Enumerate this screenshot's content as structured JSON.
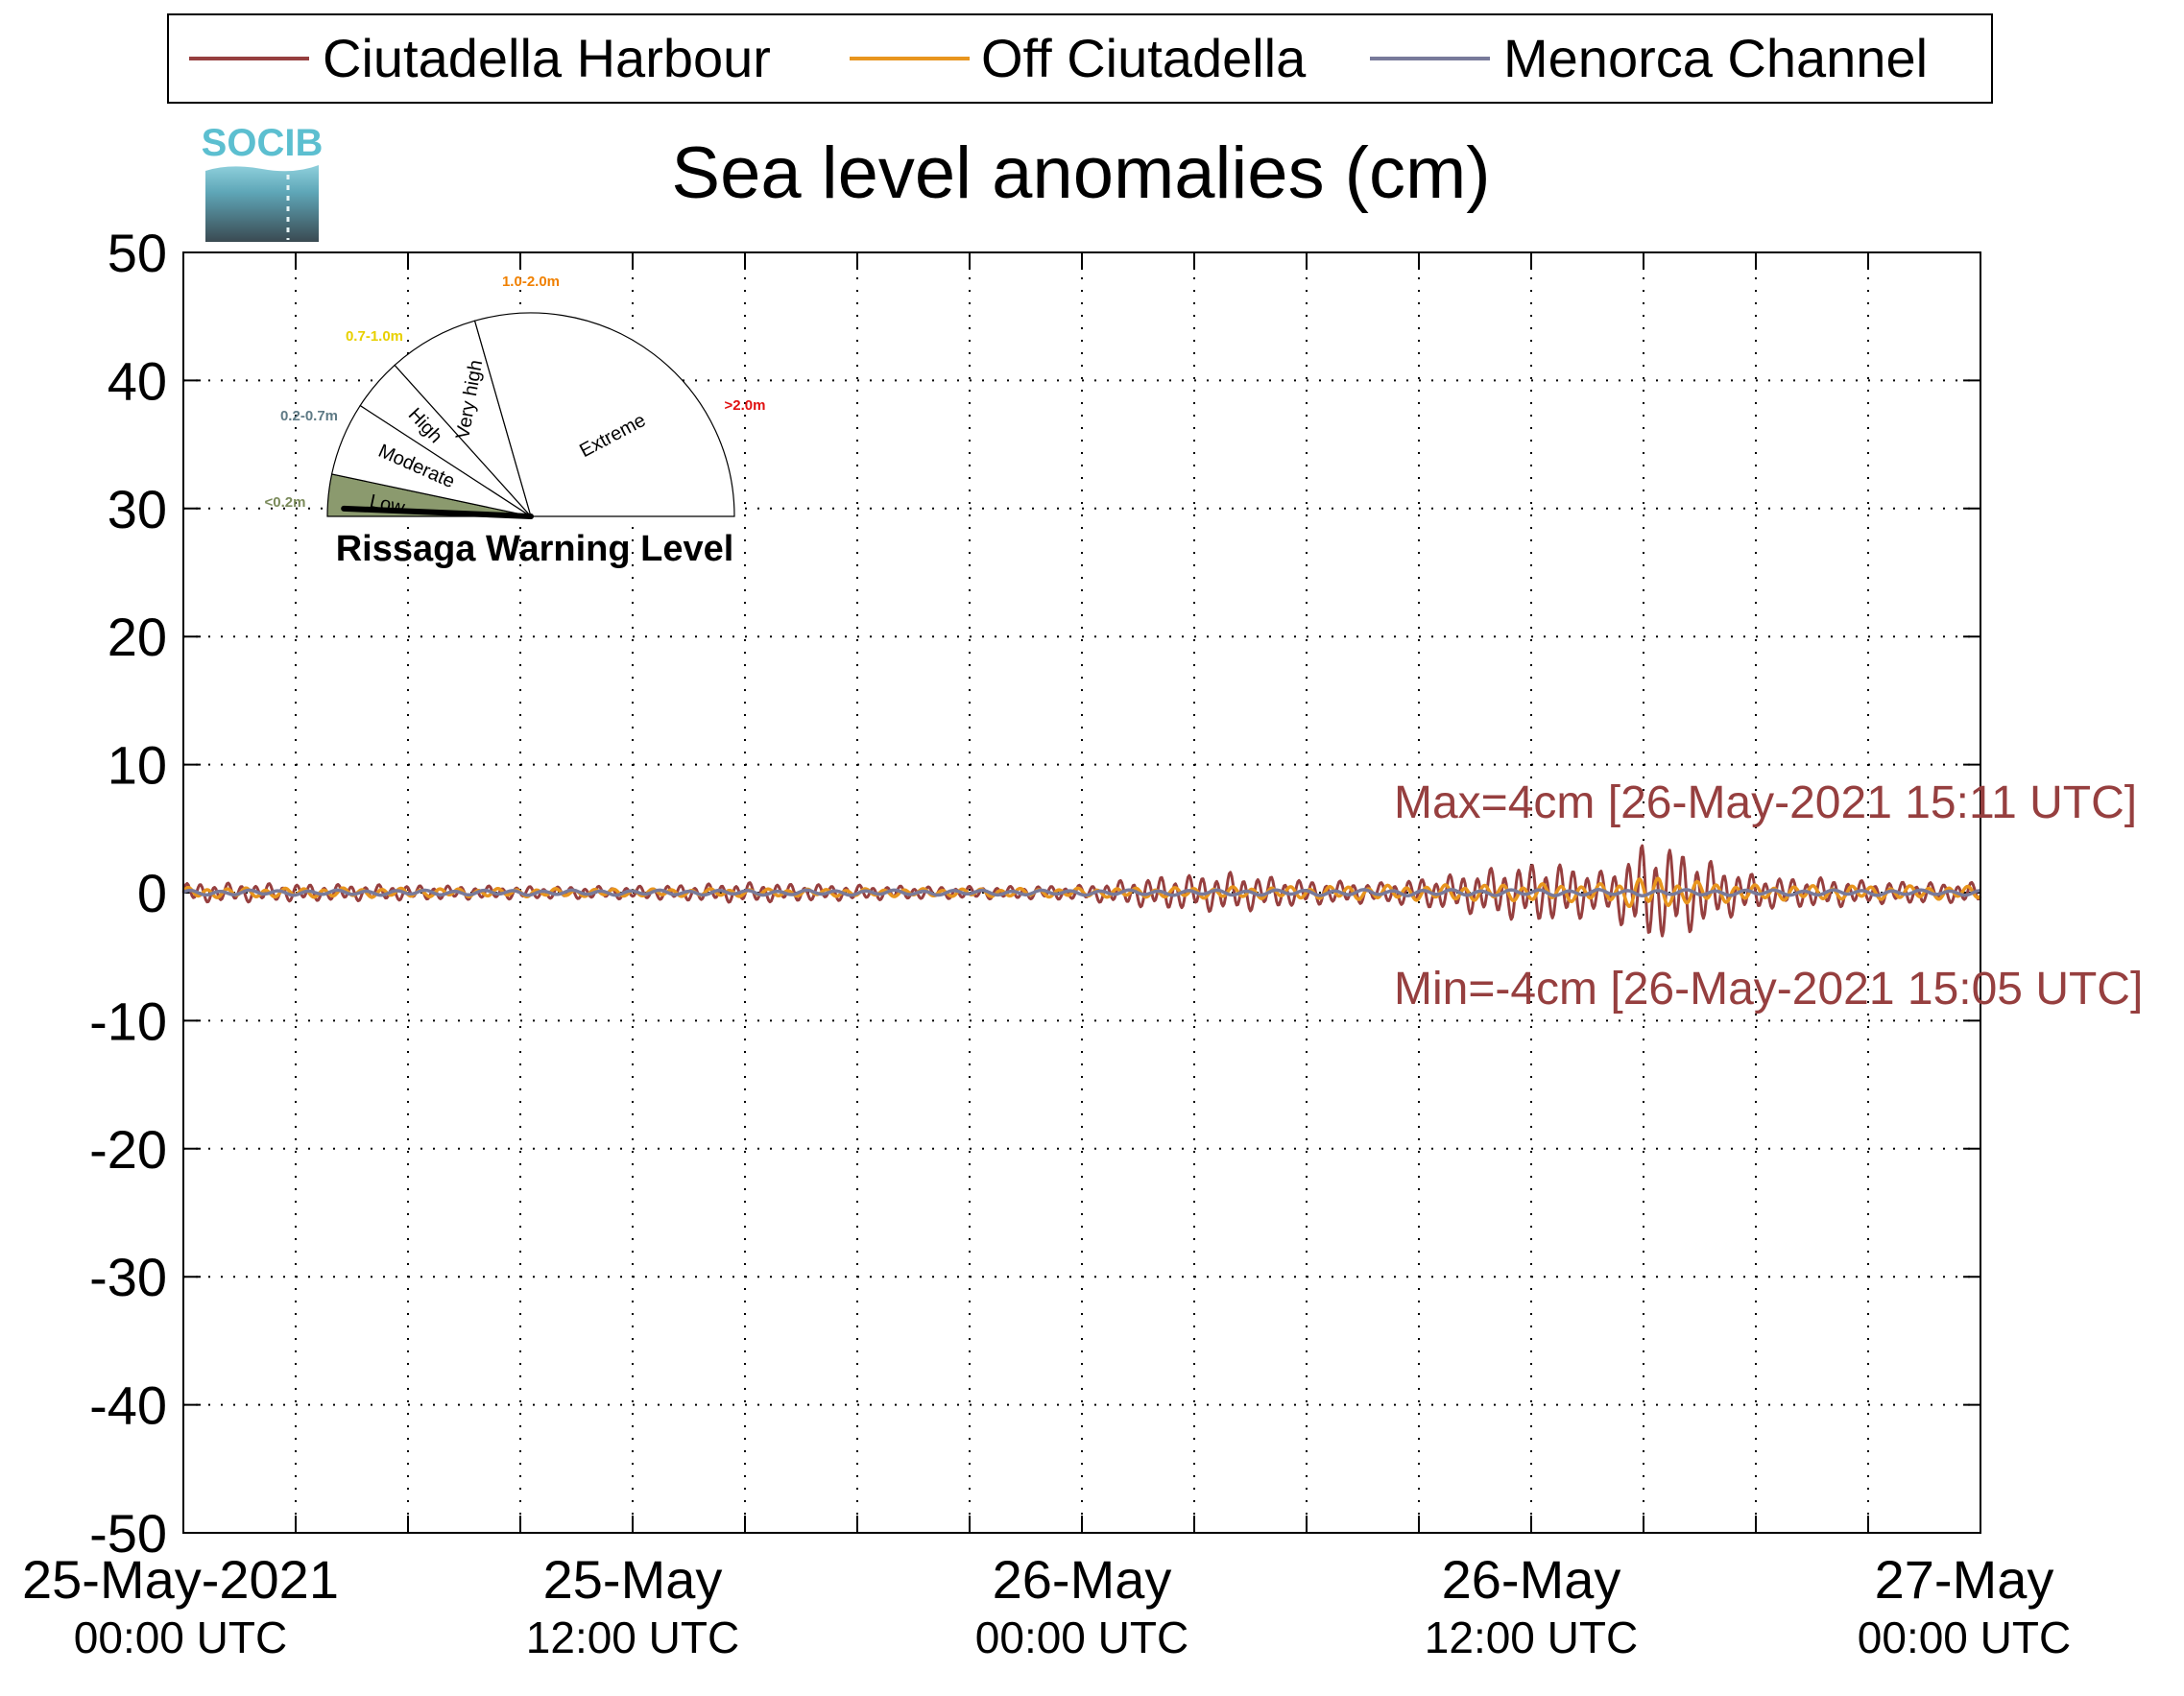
{
  "logo": {
    "text": "SOCIB"
  },
  "legend": {
    "placement": "top",
    "entries": [
      {
        "label": "Ciutadella Harbour",
        "color": "#963f3f"
      },
      {
        "label": "Off Ciutadella",
        "color": "#e8951e"
      },
      {
        "label": "Menorca Channel",
        "color": "#787a9a"
      }
    ]
  },
  "gauge": {
    "title": "Rissaga Warning Level",
    "needle_value_m": 0.04,
    "sectors": [
      {
        "name": "Low",
        "range": "<0.2m",
        "range_color": "#7a8a5a",
        "fill": "#8b9a6e",
        "active": true
      },
      {
        "name": "Moderate",
        "range": "0.2-0.7m",
        "range_color": "#5e7a85",
        "fill": "#ffffff",
        "active": false
      },
      {
        "name": "High",
        "range": "0.7-1.0m",
        "range_color": "#e8d000",
        "fill": "#ffffff",
        "active": false
      },
      {
        "name": "Very high",
        "range": "1.0-2.0m",
        "range_color": "#f08000",
        "fill": "#ffffff",
        "active": false
      },
      {
        "name": "Extreme",
        "range": ">2.0m",
        "range_color": "#e01010",
        "fill": "#ffffff",
        "active": false
      }
    ]
  },
  "annotations": {
    "max": {
      "text": "Max=4cm [26-May-2021 15:11 UTC]",
      "x_hours": 39.18,
      "y": 4,
      "color": "#963f3f"
    },
    "min": {
      "text": "Min=-4cm [26-May-2021 15:05 UTC]",
      "x_hours": 39.08,
      "y": -4,
      "color": "#963f3f"
    }
  },
  "chart_data": {
    "type": "line",
    "title": "Sea level anomalies (cm)",
    "xlabel": "",
    "ylabel": "",
    "ylim": [
      -50,
      50
    ],
    "yticks": [
      50,
      40,
      30,
      20,
      10,
      0,
      -10,
      -20,
      -30,
      -40,
      -50
    ],
    "x_range": [
      "25-May-2021 00:00 UTC",
      "27-May-2021 00:00 UTC"
    ],
    "x_tick_labels": [
      {
        "line1": "25-May-2021",
        "line2": "00:00 UTC"
      },
      {
        "line1": "25-May",
        "line2": "12:00 UTC"
      },
      {
        "line1": "26-May",
        "line2": "00:00 UTC"
      },
      {
        "line1": "26-May",
        "line2": "12:00 UTC"
      },
      {
        "line1": "27-May",
        "line2": "00:00 UTC"
      }
    ],
    "grid": true,
    "series": [
      {
        "name": "Ciutadella Harbour",
        "color": "#963f3f",
        "envelope_hours": [
          0,
          3,
          6,
          9,
          12,
          15,
          18,
          20,
          22,
          24,
          26,
          28,
          30,
          32,
          34,
          36,
          37,
          38,
          39,
          40,
          41,
          42,
          43,
          44,
          45,
          46,
          47,
          48
        ],
        "envelope_amplitude_cm": [
          0.8,
          0.7,
          0.6,
          0.5,
          0.5,
          0.8,
          0.6,
          0.5,
          0.5,
          0.6,
          1.3,
          1.6,
          1.0,
          0.8,
          1.5,
          2.4,
          2.3,
          1.6,
          4.0,
          3.6,
          2.2,
          1.4,
          1.2,
          1.2,
          0.9,
          0.9,
          0.8,
          0.8
        ]
      },
      {
        "name": "Off Ciutadella",
        "color": "#e8951e",
        "envelope_hours": [
          0,
          6,
          12,
          18,
          24,
          30,
          36,
          38,
          39,
          40,
          42,
          48
        ],
        "envelope_amplitude_cm": [
          0.4,
          0.35,
          0.3,
          0.3,
          0.35,
          0.5,
          0.7,
          0.7,
          1.4,
          1.0,
          0.6,
          0.5
        ]
      },
      {
        "name": "Menorca Channel",
        "color": "#787a9a",
        "envelope_hours": [
          0,
          12,
          24,
          36,
          48
        ],
        "envelope_amplitude_cm": [
          0.2,
          0.2,
          0.2,
          0.25,
          0.2
        ]
      }
    ]
  }
}
